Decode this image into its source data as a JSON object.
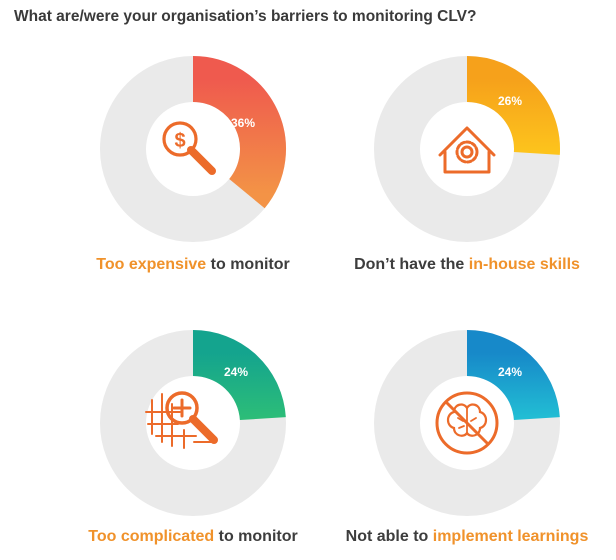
{
  "title": "What are/were your organisation’s barriers to monitoring CLV?",
  "colors": {
    "track": "#eaeaea",
    "highlight": "#f0922b",
    "text": "#3d3d3d",
    "icon": "#ec6b2a"
  },
  "chart_data": [
    {
      "type": "pie",
      "value": 36,
      "percent_label": "36%",
      "caption": [
        "Too expensive",
        " to monitor"
      ],
      "gradient": [
        "#ef5a4e",
        "#f39346"
      ],
      "icon": "dollar-magnifier-icon"
    },
    {
      "type": "pie",
      "value": 26,
      "percent_label": "26%",
      "caption": [
        "Don’t have the ",
        "in-house skills"
      ],
      "gradient": [
        "#f6a11b",
        "#fdc41c"
      ],
      "icon": "house-gear-icon"
    },
    {
      "type": "pie",
      "value": 24,
      "percent_label": "24%",
      "caption": [
        "Too complicated",
        " to monitor"
      ],
      "gradient": [
        "#14a48e",
        "#2cbd78"
      ],
      "icon": "complex-magnifier-icon"
    },
    {
      "type": "pie",
      "value": 24,
      "percent_label": "24%",
      "caption": [
        "Not able to ",
        "implement learnings"
      ],
      "gradient": [
        "#1789c9",
        "#22bed4"
      ],
      "icon": "no-brain-icon"
    }
  ]
}
